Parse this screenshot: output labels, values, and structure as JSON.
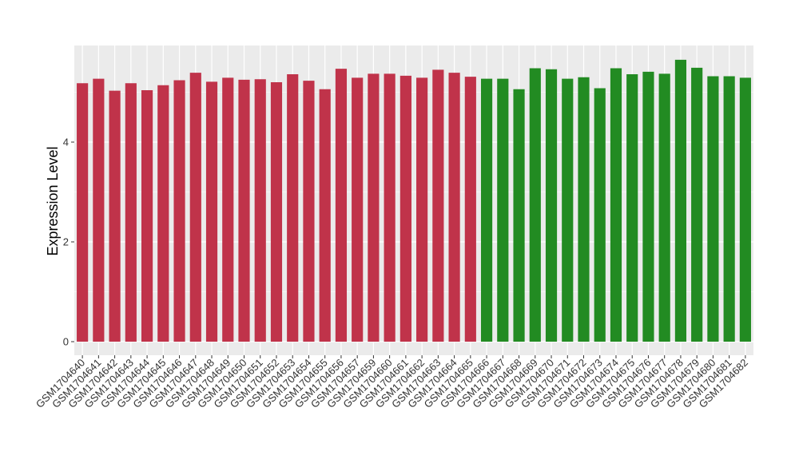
{
  "chart_data": {
    "type": "bar",
    "title": "",
    "xlabel": "",
    "ylabel": "Expression Level",
    "ylim": [
      0,
      5.85
    ],
    "yticks": [
      0,
      2,
      4
    ],
    "grid": true,
    "legend": "none",
    "categories": [
      "GSM1704640",
      "GSM1704641",
      "GSM1704642",
      "GSM1704643",
      "GSM1704644",
      "GSM1704645",
      "GSM1704646",
      "GSM1704647",
      "GSM1704648",
      "GSM1704649",
      "GSM1704650",
      "GSM1704651",
      "GSM1704652",
      "GSM1704653",
      "GSM1704654",
      "GSM1704655",
      "GSM1704656",
      "GSM1704657",
      "GSM1704659",
      "GSM1704660",
      "GSM1704661",
      "GSM1704662",
      "GSM1704663",
      "GSM1704664",
      "GSM1704665",
      "GSM1704666",
      "GSM1704667",
      "GSM1704668",
      "GSM1704669",
      "GSM1704670",
      "GSM1704671",
      "GSM1704672",
      "GSM1704673",
      "GSM1704674",
      "GSM1704675",
      "GSM1704676",
      "GSM1704677",
      "GSM1704678",
      "GSM1704679",
      "GSM1704680",
      "GSM1704681",
      "GSM1704682"
    ],
    "values": [
      5.18,
      5.27,
      5.03,
      5.18,
      5.04,
      5.14,
      5.24,
      5.39,
      5.21,
      5.29,
      5.25,
      5.26,
      5.2,
      5.36,
      5.23,
      5.06,
      5.47,
      5.29,
      5.37,
      5.37,
      5.33,
      5.29,
      5.45,
      5.39,
      5.31,
      5.27,
      5.27,
      5.06,
      5.48,
      5.46,
      5.27,
      5.3,
      5.08,
      5.48,
      5.36,
      5.41,
      5.37,
      5.65,
      5.49,
      5.32,
      5.32,
      5.29
    ],
    "bar_colors": [
      "#c0334a",
      "#c0334a",
      "#c0334a",
      "#c0334a",
      "#c0334a",
      "#c0334a",
      "#c0334a",
      "#c0334a",
      "#c0334a",
      "#c0334a",
      "#c0334a",
      "#c0334a",
      "#c0334a",
      "#c0334a",
      "#c0334a",
      "#c0334a",
      "#c0334a",
      "#c0334a",
      "#c0334a",
      "#c0334a",
      "#c0334a",
      "#c0334a",
      "#c0334a",
      "#c0334a",
      "#c0334a",
      "#228b22",
      "#228b22",
      "#228b22",
      "#228b22",
      "#228b22",
      "#228b22",
      "#228b22",
      "#228b22",
      "#228b22",
      "#228b22",
      "#228b22",
      "#228b22",
      "#228b22",
      "#228b22",
      "#228b22",
      "#228b22",
      "#228b22"
    ],
    "colors": {
      "panel_background": "#ebebeb",
      "gridline": "#ffffff"
    }
  }
}
